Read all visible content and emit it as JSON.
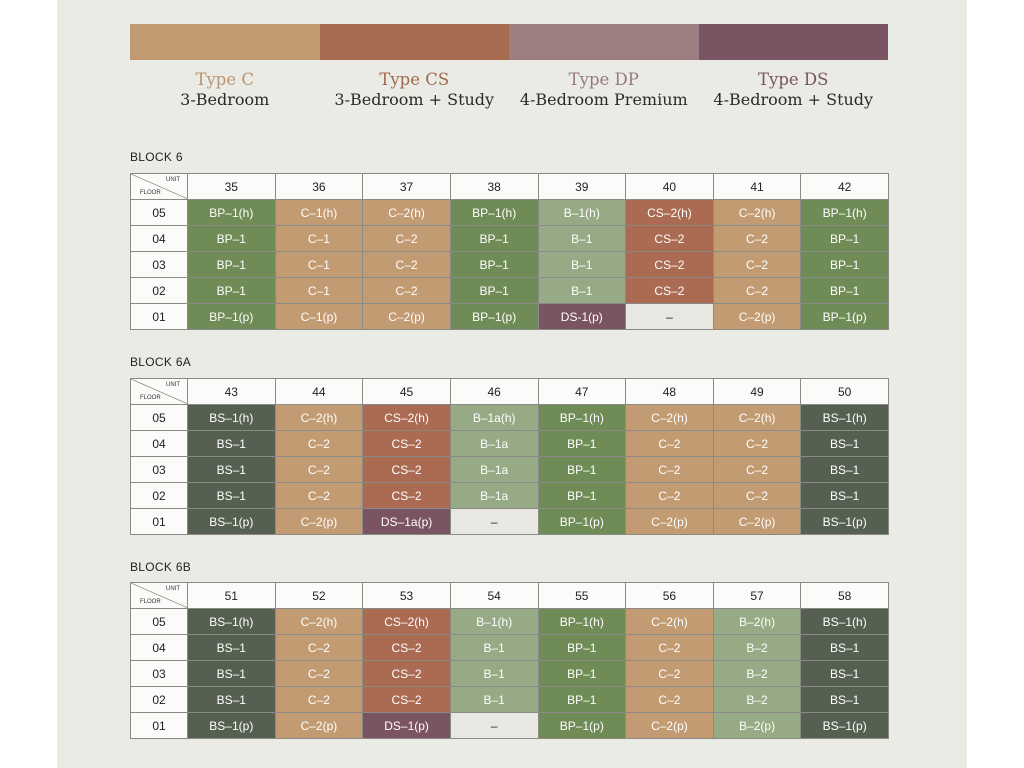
{
  "legend": {
    "types": [
      {
        "name": "Type C",
        "desc": "3-Bedroom",
        "color": "#c19a72",
        "text_color": "#b89470"
      },
      {
        "name": "Type CS",
        "desc": "3-Bedroom + Study",
        "color": "#a86c52",
        "text_color": "#a0684f"
      },
      {
        "name": "Type DP",
        "desc": "4-Bedroom Premium",
        "color": "#9c7d80",
        "text_color": "#967a7d"
      },
      {
        "name": "Type DS",
        "desc": "4-Bedroom + Study",
        "color": "#7b5464",
        "text_color": "#7a5462"
      }
    ]
  },
  "colors": {
    "C": "#c29b72",
    "CS": "#ab6b52",
    "BP": "#6f8b56",
    "B": "#95aa85",
    "BS": "#566050",
    "DS": "#7b5464",
    "empty": "#e8e7e2"
  },
  "header_corner": {
    "unit": "UNIT",
    "floor": "FLOOR"
  },
  "blocks": [
    {
      "title": "BLOCK 6",
      "units": [
        "35",
        "36",
        "37",
        "38",
        "39",
        "40",
        "41",
        "42"
      ],
      "rows": [
        {
          "floor": "05",
          "cells": [
            [
              "BP–1(h)",
              "BP"
            ],
            [
              "C–1(h)",
              "C"
            ],
            [
              "C–2(h)",
              "C"
            ],
            [
              "BP–1(h)",
              "BP"
            ],
            [
              "B–1(h)",
              "B"
            ],
            [
              "CS–2(h)",
              "CS"
            ],
            [
              "C–2(h)",
              "C"
            ],
            [
              "BP–1(h)",
              "BP"
            ]
          ]
        },
        {
          "floor": "04",
          "cells": [
            [
              "BP–1",
              "BP"
            ],
            [
              "C–1",
              "C"
            ],
            [
              "C–2",
              "C"
            ],
            [
              "BP–1",
              "BP"
            ],
            [
              "B–1",
              "B"
            ],
            [
              "CS–2",
              "CS"
            ],
            [
              "C–2",
              "C"
            ],
            [
              "BP–1",
              "BP"
            ]
          ]
        },
        {
          "floor": "03",
          "cells": [
            [
              "BP–1",
              "BP"
            ],
            [
              "C–1",
              "C"
            ],
            [
              "C–2",
              "C"
            ],
            [
              "BP–1",
              "BP"
            ],
            [
              "B–1",
              "B"
            ],
            [
              "CS–2",
              "CS"
            ],
            [
              "C–2",
              "C"
            ],
            [
              "BP–1",
              "BP"
            ]
          ]
        },
        {
          "floor": "02",
          "cells": [
            [
              "BP–1",
              "BP"
            ],
            [
              "C–1",
              "C"
            ],
            [
              "C–2",
              "C"
            ],
            [
              "BP–1",
              "BP"
            ],
            [
              "B–1",
              "B"
            ],
            [
              "CS–2",
              "CS"
            ],
            [
              "C–2",
              "C"
            ],
            [
              "BP–1",
              "BP"
            ]
          ]
        },
        {
          "floor": "01",
          "cells": [
            [
              "BP–1(p)",
              "BP"
            ],
            [
              "C–1(p)",
              "C"
            ],
            [
              "C–2(p)",
              "C"
            ],
            [
              "BP–1(p)",
              "BP"
            ],
            [
              "DS-1(p)",
              "DS"
            ],
            [
              "–",
              "empty"
            ],
            [
              "C–2(p)",
              "C"
            ],
            [
              "BP–1(p)",
              "BP"
            ]
          ]
        }
      ]
    },
    {
      "title": "BLOCK 6A",
      "units": [
        "43",
        "44",
        "45",
        "46",
        "47",
        "48",
        "49",
        "50"
      ],
      "rows": [
        {
          "floor": "05",
          "cells": [
            [
              "BS–1(h)",
              "BS"
            ],
            [
              "C–2(h)",
              "C"
            ],
            [
              "CS–2(h)",
              "CS"
            ],
            [
              "B–1a(h)",
              "B"
            ],
            [
              "BP–1(h)",
              "BP"
            ],
            [
              "C–2(h)",
              "C"
            ],
            [
              "C–2(h)",
              "C"
            ],
            [
              "BS–1(h)",
              "BS"
            ]
          ]
        },
        {
          "floor": "04",
          "cells": [
            [
              "BS–1",
              "BS"
            ],
            [
              "C–2",
              "C"
            ],
            [
              "CS–2",
              "CS"
            ],
            [
              "B–1a",
              "B"
            ],
            [
              "BP–1",
              "BP"
            ],
            [
              "C–2",
              "C"
            ],
            [
              "C–2",
              "C"
            ],
            [
              "BS–1",
              "BS"
            ]
          ]
        },
        {
          "floor": "03",
          "cells": [
            [
              "BS–1",
              "BS"
            ],
            [
              "C–2",
              "C"
            ],
            [
              "CS–2",
              "CS"
            ],
            [
              "B–1a",
              "B"
            ],
            [
              "BP–1",
              "BP"
            ],
            [
              "C–2",
              "C"
            ],
            [
              "C–2",
              "C"
            ],
            [
              "BS–1",
              "BS"
            ]
          ]
        },
        {
          "floor": "02",
          "cells": [
            [
              "BS–1",
              "BS"
            ],
            [
              "C–2",
              "C"
            ],
            [
              "CS–2",
              "CS"
            ],
            [
              "B–1a",
              "B"
            ],
            [
              "BP–1",
              "BP"
            ],
            [
              "C–2",
              "C"
            ],
            [
              "C–2",
              "C"
            ],
            [
              "BS–1",
              "BS"
            ]
          ]
        },
        {
          "floor": "01",
          "cells": [
            [
              "BS–1(p)",
              "BS"
            ],
            [
              "C–2(p)",
              "C"
            ],
            [
              "DS–1a(p)",
              "DS"
            ],
            [
              "–",
              "empty"
            ],
            [
              "BP–1(p)",
              "BP"
            ],
            [
              "C–2(p)",
              "C"
            ],
            [
              "C–2(p)",
              "C"
            ],
            [
              "BS–1(p)",
              "BS"
            ]
          ]
        }
      ]
    },
    {
      "title": "BLOCK 6B",
      "units": [
        "51",
        "52",
        "53",
        "54",
        "55",
        "56",
        "57",
        "58"
      ],
      "rows": [
        {
          "floor": "05",
          "cells": [
            [
              "BS–1(h)",
              "BS"
            ],
            [
              "C–2(h)",
              "C"
            ],
            [
              "CS–2(h)",
              "CS"
            ],
            [
              "B–1(h)",
              "B"
            ],
            [
              "BP–1(h)",
              "BP"
            ],
            [
              "C–2(h)",
              "C"
            ],
            [
              "B–2(h)",
              "B"
            ],
            [
              "BS–1(h)",
              "BS"
            ]
          ]
        },
        {
          "floor": "04",
          "cells": [
            [
              "BS–1",
              "BS"
            ],
            [
              "C–2",
              "C"
            ],
            [
              "CS–2",
              "CS"
            ],
            [
              "B–1",
              "B"
            ],
            [
              "BP–1",
              "BP"
            ],
            [
              "C–2",
              "C"
            ],
            [
              "B–2",
              "B"
            ],
            [
              "BS–1",
              "BS"
            ]
          ]
        },
        {
          "floor": "03",
          "cells": [
            [
              "BS–1",
              "BS"
            ],
            [
              "C–2",
              "C"
            ],
            [
              "CS–2",
              "CS"
            ],
            [
              "B–1",
              "B"
            ],
            [
              "BP–1",
              "BP"
            ],
            [
              "C–2",
              "C"
            ],
            [
              "B–2",
              "B"
            ],
            [
              "BS–1",
              "BS"
            ]
          ]
        },
        {
          "floor": "02",
          "cells": [
            [
              "BS–1",
              "BS"
            ],
            [
              "C–2",
              "C"
            ],
            [
              "CS–2",
              "CS"
            ],
            [
              "B–1",
              "B"
            ],
            [
              "BP–1",
              "BP"
            ],
            [
              "C–2",
              "C"
            ],
            [
              "B–2",
              "B"
            ],
            [
              "BS–1",
              "BS"
            ]
          ]
        },
        {
          "floor": "01",
          "cells": [
            [
              "BS–1(p)",
              "BS"
            ],
            [
              "C–2(p)",
              "C"
            ],
            [
              "DS–1(p)",
              "DS"
            ],
            [
              "–",
              "empty"
            ],
            [
              "BP–1(p)",
              "BP"
            ],
            [
              "C–2(p)",
              "C"
            ],
            [
              "B–2(p)",
              "B"
            ],
            [
              "BS–1(p)",
              "BS"
            ]
          ]
        }
      ]
    }
  ]
}
